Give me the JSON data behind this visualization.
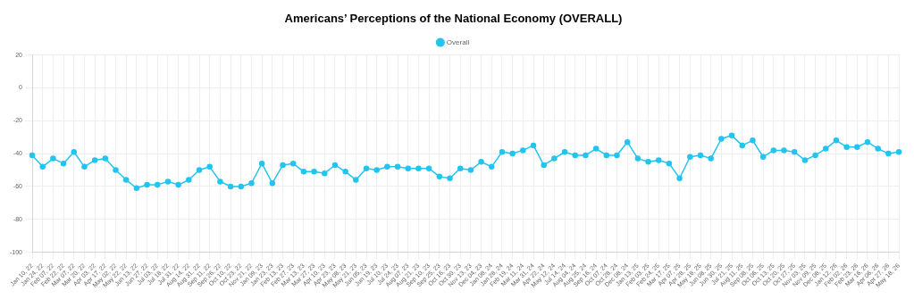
{
  "chart_data": {
    "type": "line",
    "title": "Americans’ Perceptions of the National Economy (OVERALL)",
    "categories": [
      "Jan 10, 22",
      "Jan 24, 22",
      "Feb 07, 22",
      "Feb 22, 22",
      "Mar 07, 22",
      "Mar 20, 22",
      "Apr 03, 22",
      "Apr 17, 22",
      "May 02, 22",
      "May 22, 22",
      "Jun 13, 22",
      "Jun 27, 22",
      "Jul 03, 22",
      "Jul 18, 22",
      "Jul 31, 22",
      "Aug 14, 22",
      "Aug 31, 22",
      "Sep 11, 22",
      "Sep 26, 22",
      "Oct 10, 22",
      "Oct 23, 22",
      "Nov 21, 22",
      "Jan 09, 23",
      "Jan 23, 23",
      "Feb 13, 23",
      "Feb 27, 23",
      "Mar 13, 23",
      "Mar 27, 23",
      "Apr 10, 23",
      "Apr 23, 23",
      "May 08, 23",
      "May 21, 23",
      "Jun 05, 23",
      "Jun 19, 23",
      "Jul 10, 23",
      "Jul 24, 23",
      "Aug 07, 23",
      "Aug 21, 23",
      "Sep 10, 23",
      "Sep 25, 23",
      "Oct 16, 23",
      "Oct 30, 23",
      "Nov 13, 23",
      "Dec 04, 23",
      "Jan 08, 24",
      "Jan 28, 24",
      "Feb 19, 24",
      "Mar 11, 24",
      "Mar 31, 24",
      "Apr 22, 24",
      "May 12, 24",
      "Jul 14, 24",
      "Aug 04, 24",
      "Aug 25, 24",
      "Sep 16, 24",
      "Oct 07, 24",
      "Oct 28, 24",
      "Dec 08, 24",
      "Jan 13, 25",
      "Feb 03, 25",
      "Feb 24, 25",
      "Mar 17, 25",
      "Apr 07, 25",
      "Apr 28, 25",
      "May 18, 25",
      "Jun 08, 25",
      "Jun 30, 25",
      "Jul 21, 25",
      "Aug 11, 25",
      "Sep 08, 25",
      "Oct 06, 25",
      "Oct 13, 25",
      "Oct 20, 25",
      "Oct 27, 25",
      "Nov 03, 25",
      "Nov 09, 25",
      "Dec 08, 25",
      "Jan 12, 26",
      "Feb 02, 26",
      "Feb 23, 26",
      "Mar 16, 26",
      "Apr 06, 26",
      "Apr 27, 26",
      "May 18, 26"
    ],
    "series": [
      {
        "name": "Overall",
        "color": "#22c4f0",
        "values": [
          -41,
          -48,
          -43,
          -46,
          -39,
          -48,
          -44,
          -43,
          -50,
          -56,
          -61,
          -59,
          -59,
          -57,
          -59,
          -56,
          -50,
          -48,
          -57,
          -60,
          -60,
          -58,
          -46,
          -58,
          -47,
          -46,
          -51,
          -51,
          -52,
          -47,
          -51,
          -56,
          -49,
          -50,
          -48,
          -48,
          -49,
          -49,
          -49,
          -54,
          -55,
          -49,
          -50,
          -45,
          -48,
          -39,
          -40,
          -38,
          -35,
          -47,
          -43,
          -39,
          -41,
          -41,
          -37,
          -41,
          -41,
          -33,
          -43,
          -45,
          -44,
          -46,
          -55,
          -42,
          -41,
          -43,
          -31,
          -29,
          -35,
          -32,
          -42,
          -38,
          -38,
          -39,
          -44,
          -41,
          -37,
          -32,
          -36,
          -36,
          -33,
          -37,
          -40,
          -39
        ]
      }
    ],
    "ylim": [
      -100,
      20
    ],
    "yticks": [
      -100,
      -80,
      -60,
      -40,
      -20,
      0,
      20
    ],
    "grid": true,
    "legend": "top",
    "marker": "circle",
    "line_style": "solid"
  }
}
